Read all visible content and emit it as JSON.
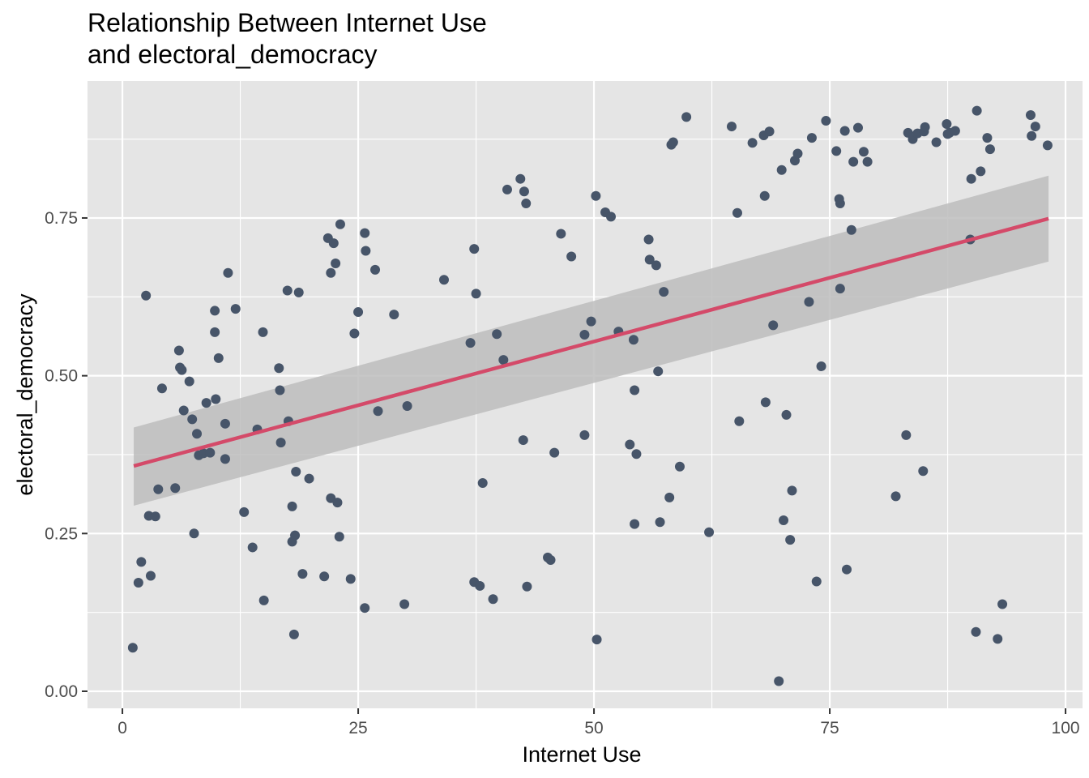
{
  "chart_data": {
    "type": "scatter",
    "title_lines": [
      "Relationship Between Internet Use",
      "and electoral_democracy"
    ],
    "xlabel": "Internet Use",
    "ylabel": "electoral_democracy",
    "xlim": [
      -3.7,
      101.8
    ],
    "ylim": [
      -0.027,
      0.967
    ],
    "x_ticks": [
      0,
      25,
      50,
      75,
      100
    ],
    "x_tick_labels": [
      "0",
      "25",
      "50",
      "75",
      "100"
    ],
    "y_ticks": [
      0,
      0.25,
      0.5,
      0.75
    ],
    "y_tick_labels": [
      "0.00",
      "0.25",
      "0.50",
      "0.75"
    ],
    "grid": true,
    "colors": {
      "panel": "#e5e5e5",
      "grid": "#ffffff",
      "points": "#475569",
      "fit_line": "#d44a69",
      "confidence_band": "#bdbdbd"
    },
    "regression": {
      "x": [
        1.2,
        98.2
      ],
      "y": [
        0.357,
        0.749
      ],
      "ci_upper": [
        0.418,
        0.817
      ],
      "ci_lower": [
        0.294,
        0.681
      ]
    },
    "points": [
      [
        1.1,
        0.069
      ],
      [
        1.7,
        0.172
      ],
      [
        2.0,
        0.205
      ],
      [
        2.5,
        0.627
      ],
      [
        2.8,
        0.278
      ],
      [
        3.0,
        0.183
      ],
      [
        3.5,
        0.277
      ],
      [
        3.8,
        0.32
      ],
      [
        4.2,
        0.48
      ],
      [
        5.6,
        0.322
      ],
      [
        6.0,
        0.54
      ],
      [
        6.1,
        0.513
      ],
      [
        6.3,
        0.509
      ],
      [
        6.5,
        0.445
      ],
      [
        7.1,
        0.491
      ],
      [
        7.4,
        0.431
      ],
      [
        7.6,
        0.25
      ],
      [
        7.9,
        0.408
      ],
      [
        8.1,
        0.374
      ],
      [
        8.6,
        0.377
      ],
      [
        8.9,
        0.457
      ],
      [
        9.3,
        0.378
      ],
      [
        9.8,
        0.603
      ],
      [
        9.8,
        0.569
      ],
      [
        9.9,
        0.463
      ],
      [
        10.2,
        0.528
      ],
      [
        10.9,
        0.424
      ],
      [
        10.9,
        0.368
      ],
      [
        11.2,
        0.663
      ],
      [
        12.0,
        0.606
      ],
      [
        12.9,
        0.284
      ],
      [
        13.8,
        0.228
      ],
      [
        14.3,
        0.415
      ],
      [
        14.9,
        0.569
      ],
      [
        15.0,
        0.144
      ],
      [
        16.6,
        0.512
      ],
      [
        16.7,
        0.477
      ],
      [
        16.8,
        0.394
      ],
      [
        17.5,
        0.635
      ],
      [
        17.6,
        0.428
      ],
      [
        18.0,
        0.293
      ],
      [
        18.0,
        0.237
      ],
      [
        18.2,
        0.09
      ],
      [
        18.3,
        0.247
      ],
      [
        18.4,
        0.348
      ],
      [
        18.7,
        0.632
      ],
      [
        19.1,
        0.186
      ],
      [
        19.8,
        0.337
      ],
      [
        21.4,
        0.182
      ],
      [
        21.8,
        0.718
      ],
      [
        22.1,
        0.306
      ],
      [
        22.1,
        0.663
      ],
      [
        22.4,
        0.71
      ],
      [
        22.6,
        0.678
      ],
      [
        22.8,
        0.299
      ],
      [
        23.0,
        0.245
      ],
      [
        23.1,
        0.74
      ],
      [
        24.2,
        0.178
      ],
      [
        24.6,
        0.567
      ],
      [
        25.0,
        0.601
      ],
      [
        25.7,
        0.726
      ],
      [
        25.7,
        0.132
      ],
      [
        25.8,
        0.698
      ],
      [
        26.8,
        0.668
      ],
      [
        27.1,
        0.444
      ],
      [
        28.8,
        0.597
      ],
      [
        29.9,
        0.138
      ],
      [
        30.2,
        0.452
      ],
      [
        34.1,
        0.652
      ],
      [
        36.9,
        0.552
      ],
      [
        37.3,
        0.701
      ],
      [
        37.3,
        0.173
      ],
      [
        37.5,
        0.63
      ],
      [
        37.9,
        0.167
      ],
      [
        38.2,
        0.33
      ],
      [
        39.3,
        0.146
      ],
      [
        39.7,
        0.566
      ],
      [
        40.4,
        0.525
      ],
      [
        40.8,
        0.795
      ],
      [
        42.2,
        0.812
      ],
      [
        42.5,
        0.398
      ],
      [
        42.6,
        0.792
      ],
      [
        42.8,
        0.773
      ],
      [
        42.9,
        0.166
      ],
      [
        45.1,
        0.212
      ],
      [
        45.4,
        0.208
      ],
      [
        45.8,
        0.378
      ],
      [
        46.5,
        0.725
      ],
      [
        47.6,
        0.689
      ],
      [
        49.0,
        0.565
      ],
      [
        49.0,
        0.406
      ],
      [
        49.7,
        0.586
      ],
      [
        50.2,
        0.785
      ],
      [
        50.3,
        0.082
      ],
      [
        51.2,
        0.759
      ],
      [
        51.8,
        0.752
      ],
      [
        52.6,
        0.57
      ],
      [
        53.8,
        0.391
      ],
      [
        54.2,
        0.557
      ],
      [
        54.3,
        0.265
      ],
      [
        54.3,
        0.477
      ],
      [
        54.5,
        0.376
      ],
      [
        55.8,
        0.716
      ],
      [
        55.9,
        0.684
      ],
      [
        56.6,
        0.675
      ],
      [
        56.8,
        0.507
      ],
      [
        57.0,
        0.268
      ],
      [
        57.4,
        0.633
      ],
      [
        58.0,
        0.307
      ],
      [
        58.2,
        0.866
      ],
      [
        58.4,
        0.87
      ],
      [
        59.1,
        0.356
      ],
      [
        59.8,
        0.91
      ],
      [
        62.2,
        0.252
      ],
      [
        64.6,
        0.895
      ],
      [
        65.2,
        0.758
      ],
      [
        65.4,
        0.428
      ],
      [
        66.8,
        0.869
      ],
      [
        68.0,
        0.881
      ],
      [
        68.1,
        0.785
      ],
      [
        68.2,
        0.458
      ],
      [
        68.6,
        0.887
      ],
      [
        69.0,
        0.58
      ],
      [
        69.6,
        0.016
      ],
      [
        69.9,
        0.826
      ],
      [
        70.1,
        0.271
      ],
      [
        70.4,
        0.438
      ],
      [
        70.8,
        0.24
      ],
      [
        71.0,
        0.318
      ],
      [
        71.3,
        0.841
      ],
      [
        71.6,
        0.852
      ],
      [
        72.8,
        0.617
      ],
      [
        73.1,
        0.877
      ],
      [
        73.6,
        0.174
      ],
      [
        74.1,
        0.515
      ],
      [
        74.6,
        0.904
      ],
      [
        75.7,
        0.856
      ],
      [
        76.0,
        0.78
      ],
      [
        76.1,
        0.773
      ],
      [
        76.1,
        0.638
      ],
      [
        76.6,
        0.888
      ],
      [
        76.8,
        0.193
      ],
      [
        77.3,
        0.731
      ],
      [
        77.5,
        0.839
      ],
      [
        78.0,
        0.893
      ],
      [
        78.6,
        0.855
      ],
      [
        79.0,
        0.839
      ],
      [
        82.0,
        0.309
      ],
      [
        83.1,
        0.406
      ],
      [
        83.3,
        0.885
      ],
      [
        83.8,
        0.875
      ],
      [
        84.3,
        0.884
      ],
      [
        84.9,
        0.349
      ],
      [
        85.0,
        0.887
      ],
      [
        85.1,
        0.894
      ],
      [
        86.3,
        0.87
      ],
      [
        87.4,
        0.899
      ],
      [
        87.5,
        0.883
      ],
      [
        87.7,
        0.885
      ],
      [
        88.3,
        0.888
      ],
      [
        89.9,
        0.716
      ],
      [
        90.0,
        0.812
      ],
      [
        90.5,
        0.094
      ],
      [
        90.6,
        0.92
      ],
      [
        91.0,
        0.824
      ],
      [
        91.7,
        0.877
      ],
      [
        92.0,
        0.859
      ],
      [
        92.8,
        0.083
      ],
      [
        93.3,
        0.138
      ],
      [
        96.3,
        0.913
      ],
      [
        96.4,
        0.88
      ],
      [
        96.8,
        0.895
      ],
      [
        98.1,
        0.865
      ]
    ]
  }
}
